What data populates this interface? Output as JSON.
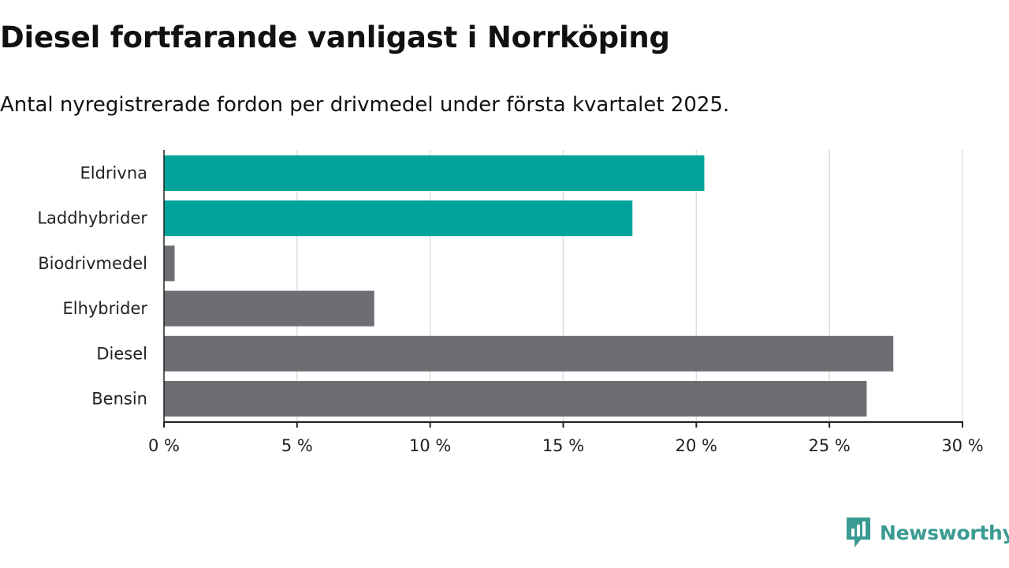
{
  "title": "Diesel fortfarande vanligast i Norrköping",
  "subtitle": "Antal nyregistrerade fordon per drivmedel under första kvartalet 2025.",
  "brand": {
    "name": "Newsworthy",
    "icon": "newsworthy-logo-icon",
    "color": "#3a9b92"
  },
  "colors": {
    "highlight": "#00a39a",
    "default": "#6e6d73",
    "grid": "#dddddd",
    "axis": "#222222"
  },
  "chart_data": {
    "type": "bar",
    "orientation": "horizontal",
    "categories": [
      "Eldrivna",
      "Laddhybrider",
      "Biodrivmedel",
      "Elhybrider",
      "Diesel",
      "Bensin"
    ],
    "values": [
      20.3,
      17.6,
      0.4,
      7.9,
      27.4,
      26.4
    ],
    "highlighted": [
      "Eldrivna",
      "Laddhybrider"
    ],
    "xlim": [
      0,
      30
    ],
    "ticks": [
      0,
      5,
      10,
      15,
      20,
      25,
      30
    ],
    "tick_labels": [
      "0 %",
      "5 %",
      "10 %",
      "15 %",
      "20 %",
      "25 %",
      "30 %"
    ],
    "grid": true,
    "legend": "none"
  }
}
